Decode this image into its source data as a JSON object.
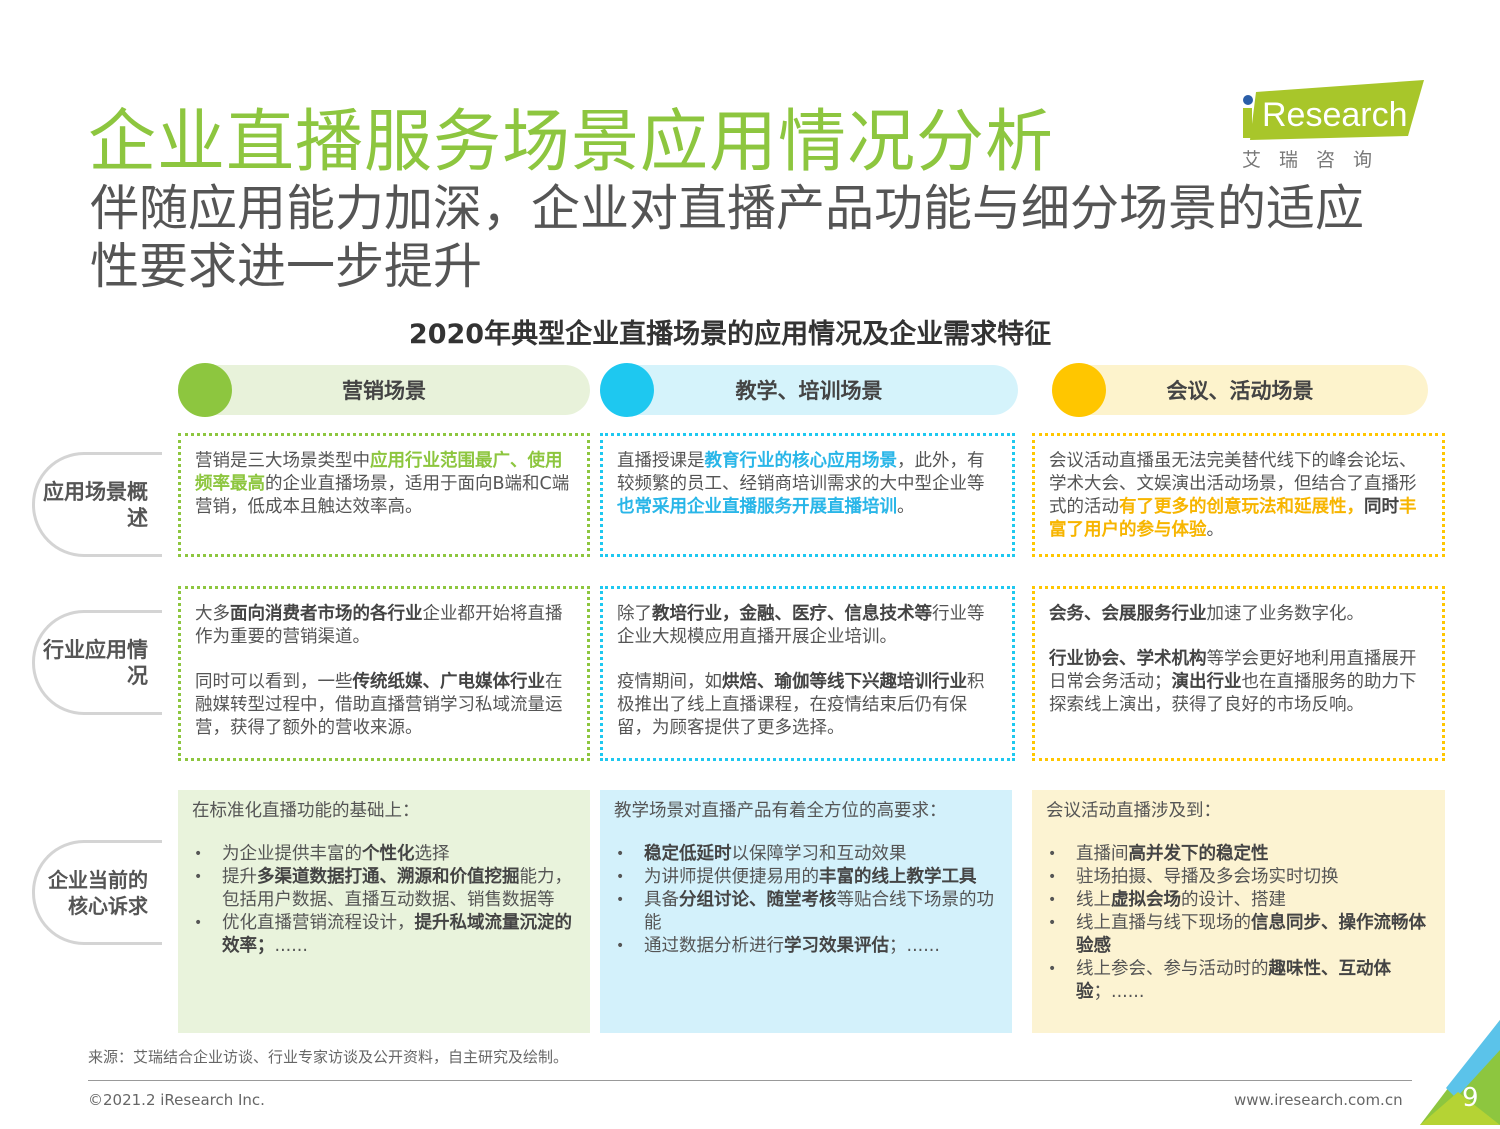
{
  "title": "企业直播服务场景应用情况分析",
  "subtitle": "伴随应用能力加深，企业对直播产品功能与细分场景的适应性要求进一步提升",
  "logo": {
    "text": "iResearch",
    "cn": "艾 瑞 咨 询"
  },
  "chart_title": "2020年典型企业直播场景的应用情况及企业需求特征",
  "colors": {
    "green": "#8dc63f",
    "blue": "#1ec8f0",
    "yellow": "#ffc600"
  },
  "row_labels": [
    "应用场景概述",
    "行业应用情况",
    "企业当前的核心诉求"
  ],
  "columns": [
    {
      "header": "营销场景",
      "overview": [
        [
          [
            "n",
            "营销是三大场景类型中"
          ],
          [
            "h",
            "应用行业范围最广、使用频率最高"
          ],
          [
            "n",
            "的企业直播场景，适用于面向B端和C端营销，低成本且触达效率高。"
          ]
        ]
      ],
      "industry": [
        [
          [
            "n",
            "大多"
          ],
          [
            "b",
            "面向消费者市场的各行业"
          ],
          [
            "n",
            "企业都开始将直播作为重要的营销渠道。"
          ]
        ],
        [
          [
            "n",
            "同时可以看到，一些"
          ],
          [
            "b",
            "传统纸媒、广电媒体行业"
          ],
          [
            "n",
            "在融媒转型过程中，借助直播营销学习私域流量运营，获得了额外的营收来源。"
          ]
        ]
      ],
      "demand_intro": "在标准化直播功能的基础上：",
      "demands": [
        [
          [
            "n",
            "为企业提供丰富的"
          ],
          [
            "b",
            "个性化"
          ],
          [
            "n",
            "选择"
          ]
        ],
        [
          [
            "n",
            "提升"
          ],
          [
            "b",
            "多渠道数据打通、溯源和价值挖掘"
          ],
          [
            "n",
            "能力，包括用户数据、直播互动数据、销售数据等"
          ]
        ],
        [
          [
            "n",
            "优化直播营销流程设计，"
          ],
          [
            "b",
            "提升私域流量沉淀的效率；"
          ],
          [
            "n",
            "......"
          ]
        ]
      ]
    },
    {
      "header": "教学、培训场景",
      "overview": [
        [
          [
            "n",
            "直播授课是"
          ],
          [
            "h",
            "教育行业的核心应用场景"
          ],
          [
            "n",
            "，此外，有较频繁的员工、经销商培训需求的大中型企业等"
          ],
          [
            "h",
            "也常采用企业直播服务开展直播培训"
          ],
          [
            "n",
            "。"
          ]
        ]
      ],
      "industry": [
        [
          [
            "n",
            "除了"
          ],
          [
            "b",
            "教培行业，金融、医疗、信息技术等"
          ],
          [
            "n",
            "行业等企业大规模应用直播开展企业培训。"
          ]
        ],
        [
          [
            "n",
            "疫情期间，如"
          ],
          [
            "b",
            "烘焙、瑜伽等线下兴趣培训行业"
          ],
          [
            "n",
            "积极推出了线上直播课程，在疫情结束后仍有保留，为顾客提供了更多选择。"
          ]
        ]
      ],
      "demand_intro": "教学场景对直播产品有着全方位的高要求：",
      "demands": [
        [
          [
            "b",
            "稳定低延时"
          ],
          [
            "n",
            "以保障学习和互动效果"
          ]
        ],
        [
          [
            "n",
            "为讲师提供便捷易用的"
          ],
          [
            "b",
            "丰富的线上教学工具"
          ]
        ],
        [
          [
            "n",
            "具备"
          ],
          [
            "b",
            "分组讨论、随堂考核"
          ],
          [
            "n",
            "等贴合线下场景的功能"
          ]
        ],
        [
          [
            "n",
            "通过数据分析进行"
          ],
          [
            "b",
            "学习效果评估"
          ],
          [
            "n",
            "；......"
          ]
        ]
      ]
    },
    {
      "header": "会议、活动场景",
      "overview": [
        [
          [
            "n",
            "会议活动直播虽无法完美替代线下的峰会论坛、学术大会、文娱演出活动场景，但结合了直播形式的活动"
          ],
          [
            "h",
            "有了更多的创意玩法和延展性，"
          ],
          [
            "b",
            "同时"
          ],
          [
            "h",
            "丰富了用户的参与体验"
          ],
          [
            "n",
            "。"
          ]
        ]
      ],
      "industry": [
        [
          [
            "b",
            "会务、会展服务行业"
          ],
          [
            "n",
            "加速了业务数字化。"
          ]
        ],
        [
          [
            "b",
            "行业协会、学术机构"
          ],
          [
            "n",
            "等学会更好地利用直播展开日常会务活动；"
          ],
          [
            "b",
            "演出行业"
          ],
          [
            "n",
            "也在直播服务的助力下探索线上演出，获得了良好的市场反响。"
          ]
        ]
      ],
      "demand_intro": "会议活动直播涉及到：",
      "demands": [
        [
          [
            "n",
            "直播间"
          ],
          [
            "b",
            "高并发下的稳定性"
          ]
        ],
        [
          [
            "n",
            "驻场拍摄、导播及多会场实时切换"
          ]
        ],
        [
          [
            "n",
            "线上"
          ],
          [
            "b",
            "虚拟会场"
          ],
          [
            "n",
            "的设计、搭建"
          ]
        ],
        [
          [
            "n",
            "线上直播与线下现场的"
          ],
          [
            "b",
            "信息同步、操作流畅体验感"
          ]
        ],
        [
          [
            "n",
            "线上参会、参与活动时的"
          ],
          [
            "b",
            "趣味性、互动体验"
          ],
          [
            "n",
            "；......"
          ]
        ]
      ]
    }
  ],
  "source": "来源：艾瑞结合企业访谈、行业专家访谈及公开资料，自主研究及绘制。",
  "copyright": "©2021.2 iResearch Inc.",
  "website": "www.iresearch.com.cn",
  "page_number": "9"
}
